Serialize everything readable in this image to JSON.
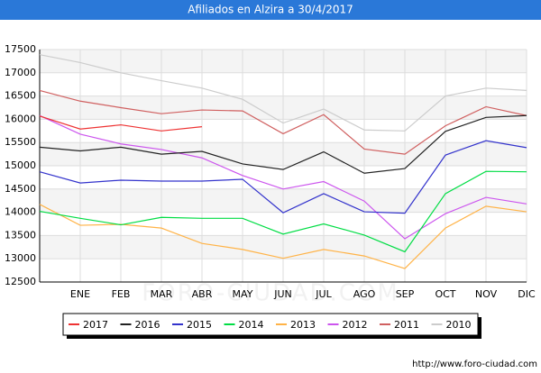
{
  "chart_data": {
    "type": "line",
    "title": "Afiliados en Alzira a 30/4/2017",
    "categories": [
      null,
      "ENE",
      "FEB",
      "MAR",
      "ABR",
      "MAY",
      "JUN",
      "JUL",
      "AGO",
      "SEP",
      "OCT",
      "NOV",
      "DIC"
    ],
    "ylim": [
      12500,
      17500
    ],
    "yticks": [
      12500,
      13000,
      13500,
      14000,
      14500,
      15000,
      15500,
      16000,
      16500,
      17000,
      17500
    ],
    "grid": true,
    "watermark": "FORO-CIUDAD.COM",
    "footer": "http://www.foro-ciudad.com",
    "series": [
      {
        "name": "2017",
        "color": "#ee3333",
        "values": [
          16070,
          15790,
          15880,
          15750,
          15840,
          null,
          null,
          null,
          null,
          null,
          null,
          null,
          null
        ]
      },
      {
        "name": "2016",
        "color": "#222222",
        "values": [
          15400,
          15320,
          15400,
          15250,
          15310,
          15040,
          14920,
          15300,
          14840,
          14940,
          15740,
          16040,
          16080
        ]
      },
      {
        "name": "2015",
        "color": "#3333cc",
        "values": [
          14870,
          14630,
          14690,
          14670,
          14670,
          14710,
          13990,
          14400,
          14010,
          13980,
          15230,
          15540,
          15390
        ]
      },
      {
        "name": "2014",
        "color": "#00dd44",
        "values": [
          14020,
          13870,
          13730,
          13890,
          13870,
          13870,
          13530,
          13750,
          13510,
          13150,
          14400,
          14880,
          14870
        ]
      },
      {
        "name": "2013",
        "color": "#ffb347",
        "values": [
          14170,
          13720,
          13740,
          13660,
          13330,
          13200,
          13010,
          13200,
          13060,
          12790,
          13660,
          14130,
          14010
        ]
      },
      {
        "name": "2012",
        "color": "#cc55ee",
        "values": [
          16080,
          15680,
          15470,
          15350,
          15170,
          14790,
          14500,
          14660,
          14240,
          13430,
          13970,
          14320,
          14180
        ]
      },
      {
        "name": "2011",
        "color": "#d06060",
        "values": [
          16620,
          16390,
          16250,
          16120,
          16200,
          16180,
          15690,
          16100,
          15360,
          15250,
          15860,
          16270,
          16080
        ]
      },
      {
        "name": "2010",
        "color": "#cccccc",
        "values": [
          17390,
          17220,
          17000,
          16830,
          16670,
          16430,
          15920,
          16220,
          15770,
          15750,
          16500,
          16670,
          16620
        ]
      }
    ]
  }
}
